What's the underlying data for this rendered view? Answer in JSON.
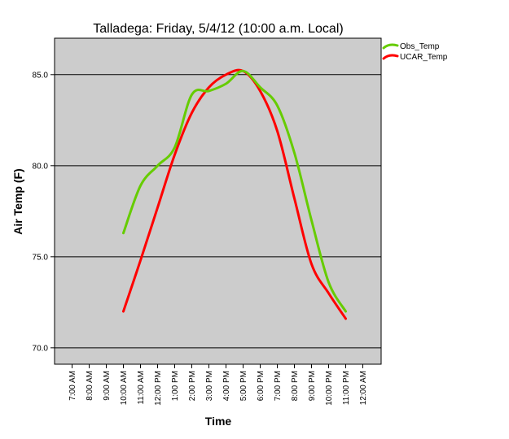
{
  "chart_data": {
    "type": "line",
    "title": "Talladega: Friday, 5/4/12 (10:00 a.m. Local)",
    "xlabel": "Time",
    "ylabel": "Air Temp (F)",
    "categories": [
      "7:00 AM",
      "8:00 AM",
      "9:00 AM",
      "10:00 AM",
      "11:00 AM",
      "12:00 PM",
      "1:00 PM",
      "2:00 PM",
      "3:00 PM",
      "4:00 PM",
      "5:00 PM",
      "6:00 PM",
      "7:00 PM",
      "8:00 PM",
      "9:00 PM",
      "10:00 PM",
      "11:00 PM",
      "12:00 AM"
    ],
    "ylim": [
      69.1,
      87.0
    ],
    "yticks": [
      "70.0",
      "75.0",
      "80.0",
      "85.0"
    ],
    "ytick_values": [
      70,
      75,
      80,
      85
    ],
    "grid": "horizontal",
    "legend_position": "top-right",
    "series": [
      {
        "name": "Obs_Temp",
        "color": "#66cc00",
        "values": [
          null,
          null,
          null,
          76.3,
          78.9,
          80.0,
          81.0,
          83.9,
          84.1,
          84.5,
          85.2,
          84.3,
          83.3,
          80.7,
          77.0,
          73.6,
          72.0,
          null
        ]
      },
      {
        "name": "UCAR_Temp",
        "color": "#ff0000",
        "values": [
          null,
          null,
          null,
          72.0,
          74.8,
          77.7,
          80.6,
          82.9,
          84.3,
          85.0,
          85.2,
          84.1,
          81.9,
          78.2,
          74.6,
          73.0,
          71.6,
          null
        ]
      }
    ]
  }
}
